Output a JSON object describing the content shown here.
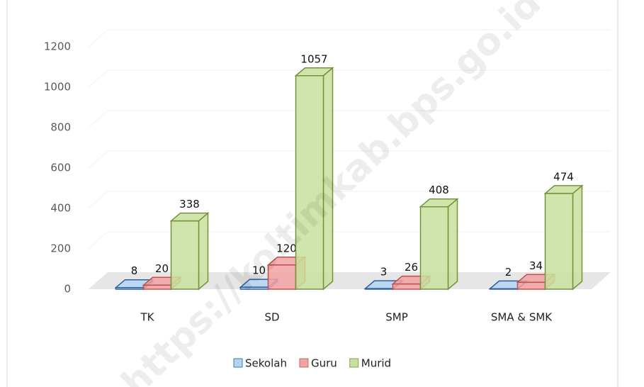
{
  "chart_data": {
    "type": "bar3d",
    "watermark": "https://koltimkab.bps.go.id",
    "categories": [
      "TK",
      "SD",
      "SMP",
      "SMA & SMK"
    ],
    "series": [
      {
        "name": "Sekolah",
        "color": "#b4d3f0",
        "stroke": "#2f5f9f",
        "values": [
          8,
          10,
          3,
          2
        ]
      },
      {
        "name": "Guru",
        "color": "#f2a2a2",
        "stroke": "#c0504d",
        "values": [
          20,
          120,
          26,
          34
        ]
      },
      {
        "name": "Murid",
        "color": "#c8e19c",
        "stroke": "#76923c",
        "values": [
          338,
          1057,
          408,
          474
        ]
      }
    ],
    "ylim": [
      0,
      1200
    ],
    "yticks": [
      0,
      200,
      400,
      600,
      800,
      1000,
      1200
    ],
    "grid": true,
    "legend": "bottom"
  }
}
